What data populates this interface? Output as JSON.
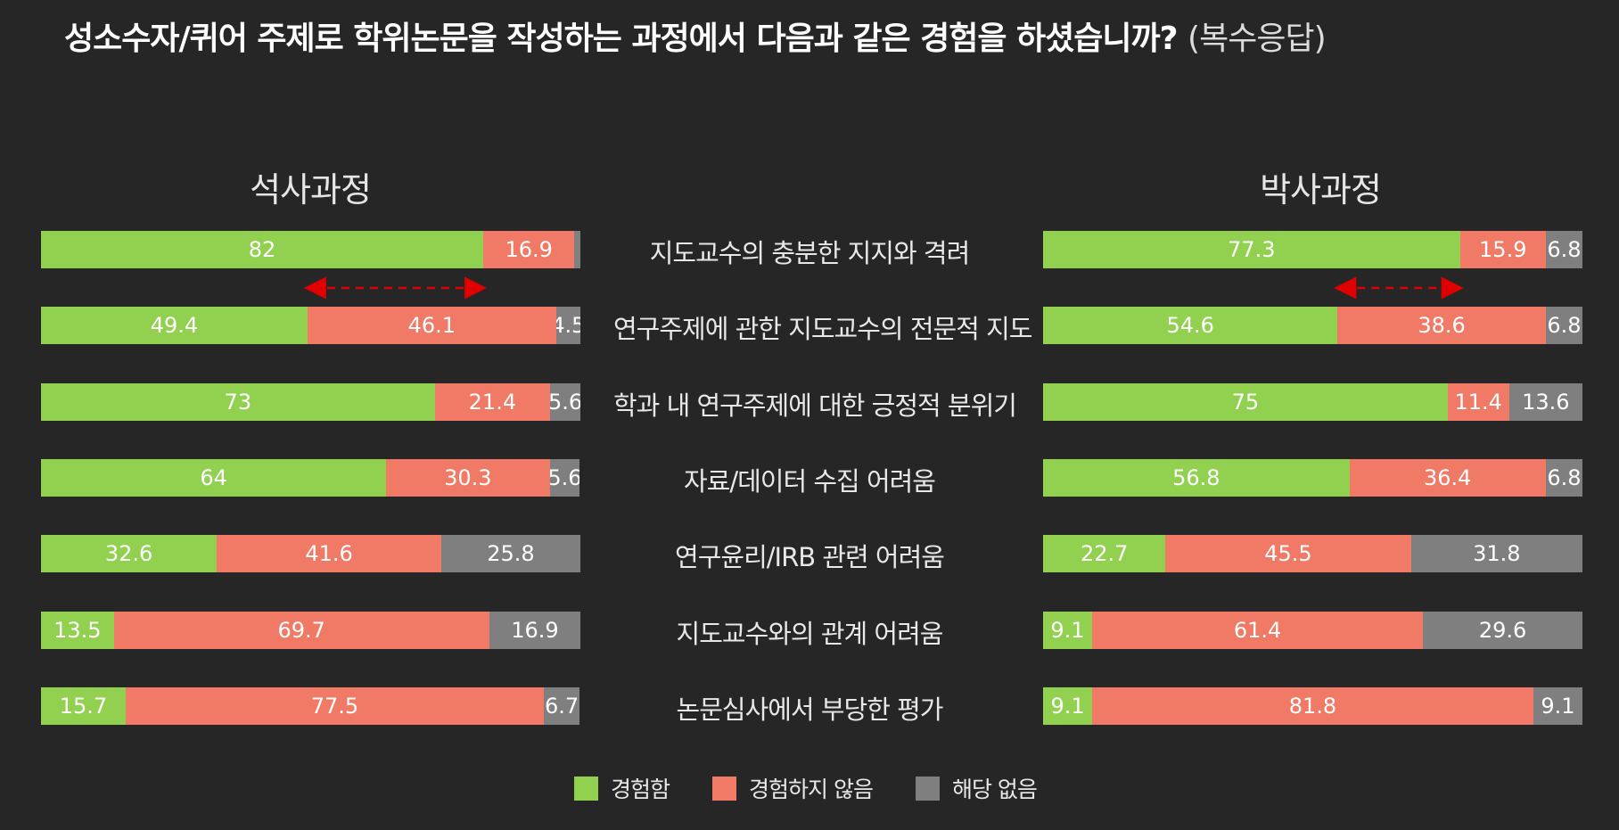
{
  "title": "성소수자/퀴어 주제로 학위논문을 작성하는 과정에서 다음과 같은 경험을 하셨습니까?",
  "title_note": "(복수응답)",
  "colors": {
    "background": "#262626",
    "experienced": "#92d050",
    "not_experienced": "#f07a65",
    "not_applicable": "#7f7f7f",
    "arrow": "#e00000"
  },
  "legend": [
    "경험함",
    "경험하지 않음",
    "해당 없음"
  ],
  "chart_data": [
    {
      "type": "bar",
      "stacked": true,
      "orientation": "horizontal",
      "title": "석사과정",
      "categories": [
        "지도교수의 충분한 지지와 격려",
        "연구주제에 관한 지도교수의 전문적 지도",
        "학과 내 연구주제에 대한 긍정적 분위기",
        "자료/데이터 수집 어려움",
        "연구윤리/IRB 관련 어려움",
        "지도교수와의 관계 어려움",
        "논문심사에서 부당한 평가"
      ],
      "series": [
        {
          "name": "경험함",
          "values": [
            82,
            49.4,
            73,
            64,
            32.6,
            13.5,
            15.7
          ]
        },
        {
          "name": "경험하지 않음",
          "values": [
            16.9,
            46.1,
            21.4,
            30.3,
            41.6,
            69.7,
            77.5
          ]
        },
        {
          "name": "해당 없음",
          "values": [
            1.1,
            4.5,
            5.6,
            5.6,
            25.8,
            16.9,
            6.7
          ]
        }
      ],
      "shown_labels": [
        [
          "82",
          "16.9",
          ""
        ],
        [
          "49.4",
          "46.1",
          "4.5"
        ],
        [
          "73",
          "21.4",
          "5.6"
        ],
        [
          "64",
          "30.3",
          "5.6"
        ],
        [
          "32.6",
          "41.6",
          "25.8"
        ],
        [
          "13.5",
          "69.7",
          "16.9"
        ],
        [
          "15.7",
          "77.5",
          "6.7"
        ]
      ],
      "xlim": [
        0,
        100
      ]
    },
    {
      "type": "bar",
      "stacked": true,
      "orientation": "horizontal",
      "title": "박사과정",
      "categories": [
        "지도교수의 충분한 지지와 격려",
        "연구주제에 관한 지도교수의 전문적 지도",
        "학과 내 연구주제에 대한 긍정적 분위기",
        "자료/데이터 수집 어려움",
        "연구윤리/IRB 관련 어려움",
        "지도교수와의 관계 어려움",
        "논문심사에서 부당한 평가"
      ],
      "series": [
        {
          "name": "경험함",
          "values": [
            77.3,
            54.6,
            75,
            56.8,
            22.7,
            9.1,
            9.1
          ]
        },
        {
          "name": "경험하지 않음",
          "values": [
            15.9,
            38.6,
            11.4,
            36.4,
            45.5,
            61.4,
            81.8
          ]
        },
        {
          "name": "해당 없음",
          "values": [
            6.8,
            6.8,
            13.6,
            6.8,
            31.8,
            29.6,
            9.1
          ]
        }
      ],
      "shown_labels": [
        [
          "77.3",
          "15.9",
          "6.8"
        ],
        [
          "54.6",
          "38.6",
          "6.8"
        ],
        [
          "75",
          "11.4",
          "13.6"
        ],
        [
          "56.8",
          "36.4",
          "6.8"
        ],
        [
          "22.7",
          "45.5",
          "31.8"
        ],
        [
          "9.1",
          "61.4",
          "29.6"
        ],
        [
          "9.1",
          "81.8",
          "9.1"
        ]
      ],
      "xlim": [
        0,
        100
      ]
    }
  ],
  "annotations": [
    {
      "panel": "석사과정",
      "type": "double-arrow",
      "between_categories": [
        0,
        1
      ],
      "from_value": 49.4,
      "to_value": 82
    },
    {
      "panel": "박사과정",
      "type": "double-arrow",
      "between_categories": [
        0,
        1
      ],
      "from_value": 54.6,
      "to_value": 77.3
    }
  ]
}
